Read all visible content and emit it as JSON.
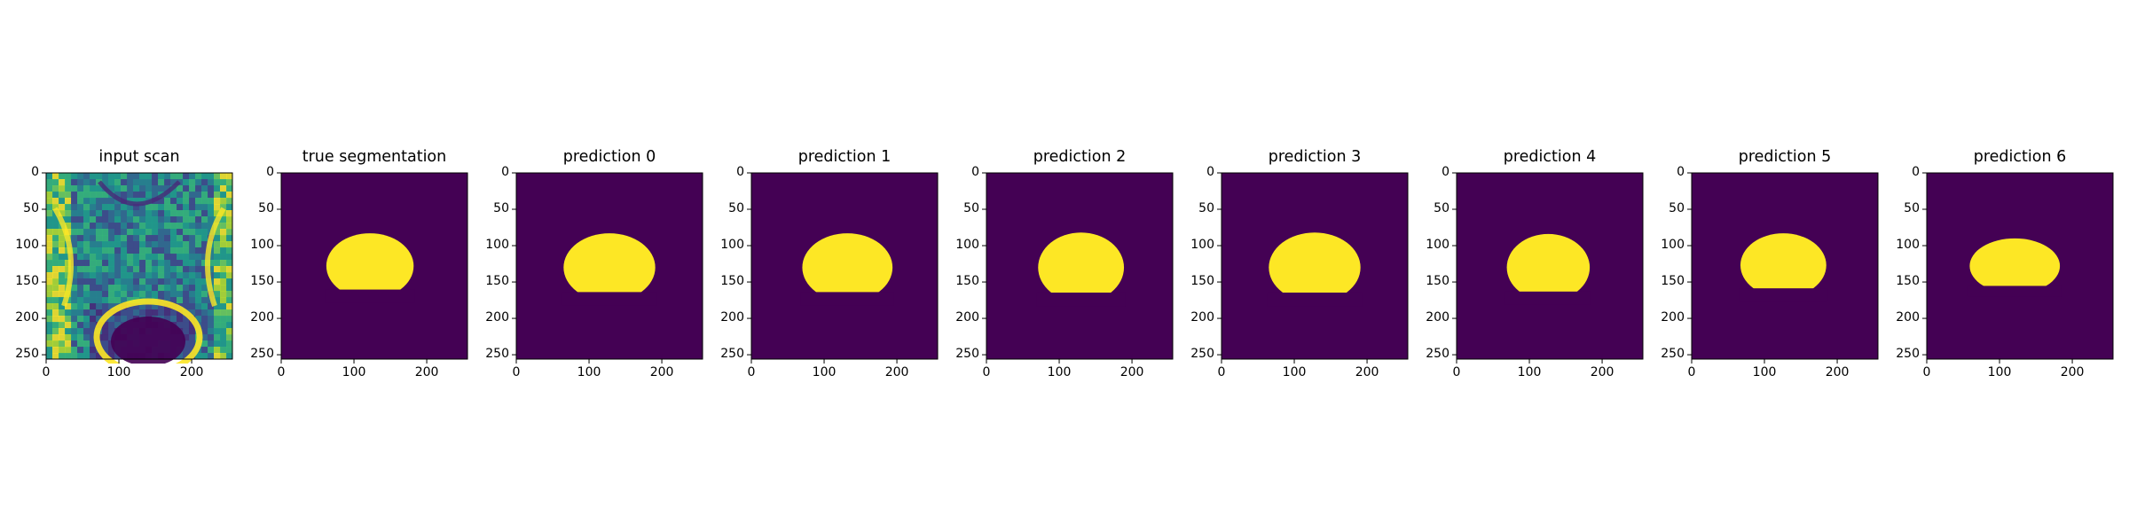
{
  "figure": {
    "panels": [
      {
        "title": "input scan",
        "kind": "mri"
      },
      {
        "title": "true segmentation",
        "kind": "mask",
        "cx": 122,
        "cy": 128,
        "rx": 60,
        "ry": 45
      },
      {
        "title": "prediction 0",
        "kind": "mask",
        "cx": 128,
        "cy": 130,
        "rx": 63,
        "ry": 47
      },
      {
        "title": "prediction 1",
        "kind": "mask",
        "cx": 132,
        "cy": 130,
        "rx": 62,
        "ry": 47
      },
      {
        "title": "prediction 2",
        "kind": "mask",
        "cx": 130,
        "cy": 130,
        "rx": 59,
        "ry": 48
      },
      {
        "title": "prediction 3",
        "kind": "mask",
        "cx": 128,
        "cy": 130,
        "rx": 63,
        "ry": 48
      },
      {
        "title": "prediction 4",
        "kind": "mask",
        "cx": 126,
        "cy": 130,
        "rx": 57,
        "ry": 46
      },
      {
        "title": "prediction 5",
        "kind": "mask",
        "cx": 126,
        "cy": 127,
        "rx": 59,
        "ry": 44
      },
      {
        "title": "prediction 6",
        "kind": "mask",
        "cx": 121,
        "cy": 128,
        "rx": 62,
        "ry": 38
      }
    ],
    "y_ticks": [
      "0",
      "50",
      "100",
      "150",
      "200",
      "250"
    ],
    "y_tick_values": [
      0,
      50,
      100,
      150,
      200,
      250
    ],
    "x_ticks": [
      "0",
      "100",
      "200"
    ],
    "x_tick_values": [
      0,
      100,
      200
    ],
    "axis_range": [
      0,
      256
    ],
    "colors": {
      "background": "#440154",
      "foreground": "#fde725",
      "viridis": [
        "#440154",
        "#482878",
        "#3e4989",
        "#31688e",
        "#26828e",
        "#1f9e89",
        "#35b779",
        "#6ece58",
        "#b5de2b",
        "#fde725"
      ]
    }
  }
}
